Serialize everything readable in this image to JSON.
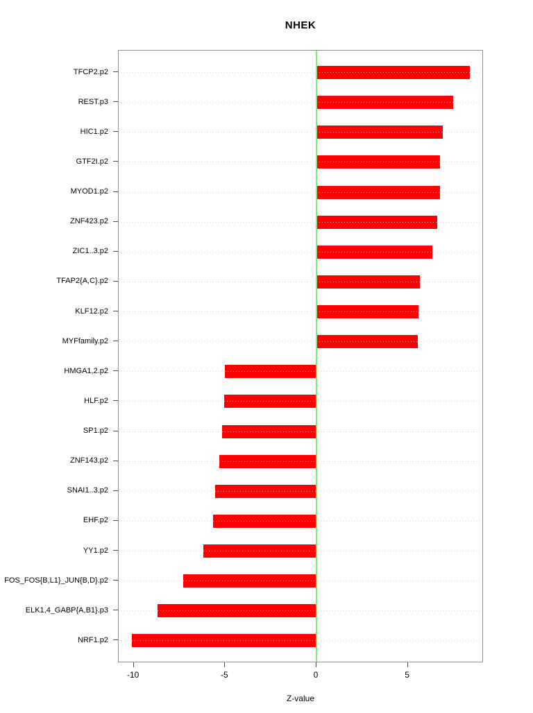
{
  "title": "NHEK",
  "axis": {
    "xlabel": "Z-value",
    "xticks": [
      "-10",
      "-5",
      "0",
      "5"
    ],
    "xtick_values": [
      -10,
      -5,
      0,
      5
    ]
  },
  "colors": {
    "bar": "#ff0000",
    "zero_line": "#7cee7c",
    "grid_dots": "#d2d2d2",
    "bar_dots": "#ffa3a3",
    "box_border": "#8f8f8f",
    "text": "#000000"
  },
  "chart_data": {
    "type": "bar",
    "orientation": "horizontal",
    "title": "NHEK",
    "xlabel": "Z-value",
    "ylabel": "",
    "xlim": [
      -10.8,
      9.2
    ],
    "xticks": [
      -10,
      -5,
      0,
      5
    ],
    "grid": "dotted horizontal leader lines per category",
    "legend": "none",
    "zero_reference_line": true,
    "categories": [
      "TFCP2.p2",
      "REST.p3",
      "HIC1.p2",
      "GTF2I.p2",
      "MYOD1.p2",
      "ZNF423.p2",
      "ZIC1..3.p2",
      "TFAP2{A,C}.p2",
      "KLF12.p2",
      "MYFfamily.p2",
      "HMGA1,2.p2",
      "HLF.p2",
      "SP1.p2",
      "ZNF143.p2",
      "SNAI1..3.p2",
      "EHF.p2",
      "YY1.p2",
      "FOS_FOS{B,L1}_JUN{B,D}.p2",
      "ELK1,4_GABP{A,B1}.p3",
      "NRF1.p2"
    ],
    "values": [
      8.4,
      7.5,
      6.9,
      6.75,
      6.75,
      6.6,
      6.35,
      5.65,
      5.6,
      5.55,
      -5.0,
      -5.05,
      -5.15,
      -5.3,
      -5.55,
      -5.65,
      -6.2,
      -7.3,
      -8.7,
      -10.1
    ]
  }
}
